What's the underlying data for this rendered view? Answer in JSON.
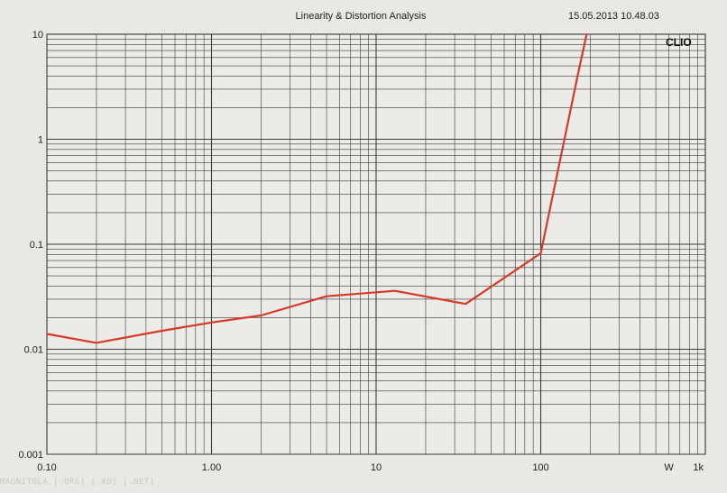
{
  "header": {
    "title": "Linearity & Distortion Analysis",
    "timestamp": "15.05.2013 10.48.03",
    "brand": "CLIO"
  },
  "watermark": "MAGNITOLA [.ORG] [.RU] [.NET]",
  "colors": {
    "curve": "#d63a2a",
    "grid": "#3a3a3a",
    "background": "#e9e8e4"
  },
  "chart_data": {
    "type": "line",
    "title": "Linearity & Distortion Analysis",
    "x_scale": "log",
    "y_scale": "log",
    "xlim": [
      0.1,
      1000
    ],
    "ylim": [
      0.001,
      10
    ],
    "grid": true,
    "x_tick_labels": [
      {
        "value": 0.1,
        "label": "0.10"
      },
      {
        "value": 1,
        "label": "1.00"
      },
      {
        "value": 10,
        "label": "10"
      },
      {
        "value": 100,
        "label": "100"
      },
      {
        "value": 1000,
        "label": "1k"
      }
    ],
    "x_unit_label": "W",
    "y_tick_labels": [
      {
        "value": 10,
        "label": "10"
      },
      {
        "value": 1,
        "label": "1"
      },
      {
        "value": 0.1,
        "label": "0.1"
      },
      {
        "value": 0.01,
        "label": "0.01"
      },
      {
        "value": 0.001,
        "label": "0.001"
      }
    ],
    "series": [
      {
        "x": [
          0.1,
          0.2,
          0.5,
          1.0,
          2.0,
          5.0,
          13.0,
          35.0,
          100.0,
          170.0,
          190.0
        ],
        "y": [
          0.014,
          0.0115,
          0.015,
          0.018,
          0.021,
          0.032,
          0.036,
          0.027,
          0.082,
          4.5,
          10
        ]
      }
    ]
  }
}
